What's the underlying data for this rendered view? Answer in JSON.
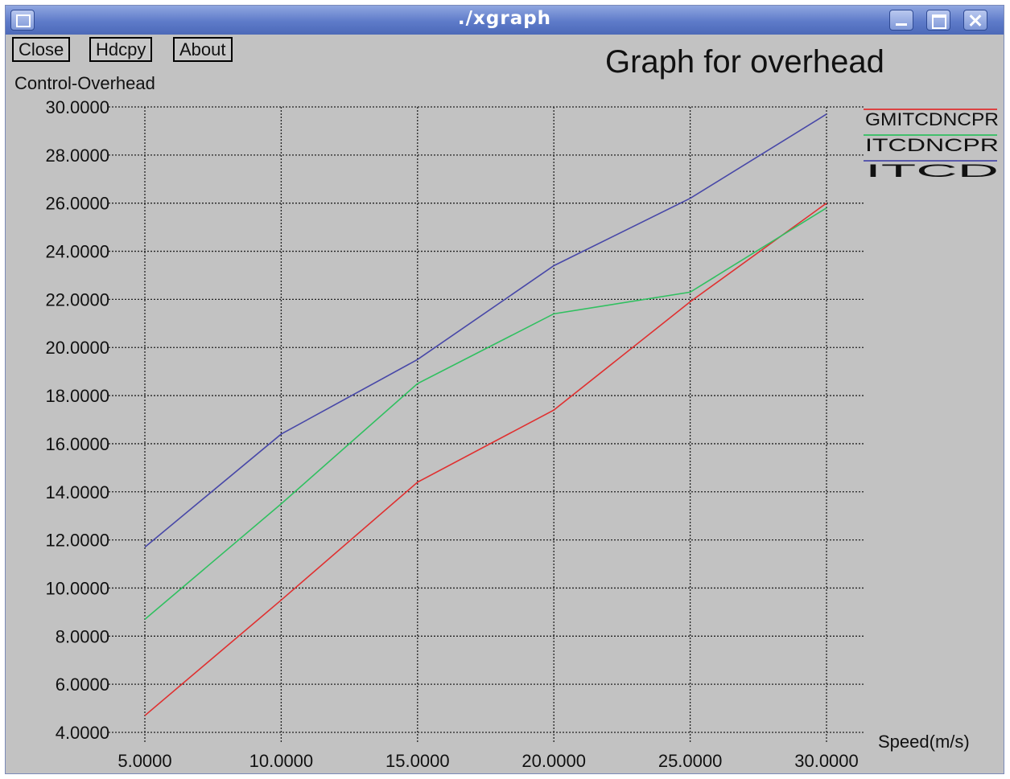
{
  "window": {
    "title": "./xgraph",
    "buttons": {
      "close": "Close",
      "hdcpy": "Hdcpy",
      "about": "About"
    }
  },
  "colors": {
    "GMITCDNCPR": "#e03030",
    "ITCDNCPR": "#30c060",
    "ITCD": "#4848a8",
    "background": "#c2c2c2"
  },
  "chart_data": {
    "type": "line",
    "title": "Graph for overhead",
    "ylabel": "Control-Overhead",
    "xlabel": "Speed(m/s)",
    "x": [
      5,
      10,
      15,
      20,
      25,
      30
    ],
    "x_tick_labels": [
      "5.0000",
      "10.0000",
      "15.0000",
      "20.0000",
      "25.0000",
      "30.0000"
    ],
    "y_tick_labels": [
      "4.0000",
      "6.0000",
      "8.0000",
      "10.0000",
      "12.0000",
      "14.0000",
      "16.0000",
      "18.0000",
      "20.0000",
      "22.0000",
      "24.0000",
      "26.0000",
      "28.0000",
      "30.0000"
    ],
    "y_ticks": [
      4,
      6,
      8,
      10,
      12,
      14,
      16,
      18,
      20,
      22,
      24,
      26,
      28,
      30
    ],
    "xlim": [
      5,
      30
    ],
    "ylim": [
      4,
      30
    ],
    "grid": true,
    "legend_position": "top-right",
    "series": [
      {
        "name": "GMITCDNCPR",
        "color": "#e03030",
        "values": [
          4.7,
          9.5,
          14.4,
          17.4,
          21.9,
          26.0
        ]
      },
      {
        "name": "ITCDNCPR",
        "color": "#30c060",
        "values": [
          8.7,
          13.5,
          18.5,
          21.4,
          22.3,
          25.8
        ]
      },
      {
        "name": "ITCD",
        "color": "#4848a8",
        "values": [
          11.7,
          16.4,
          19.5,
          23.4,
          26.2,
          29.7
        ]
      }
    ]
  }
}
